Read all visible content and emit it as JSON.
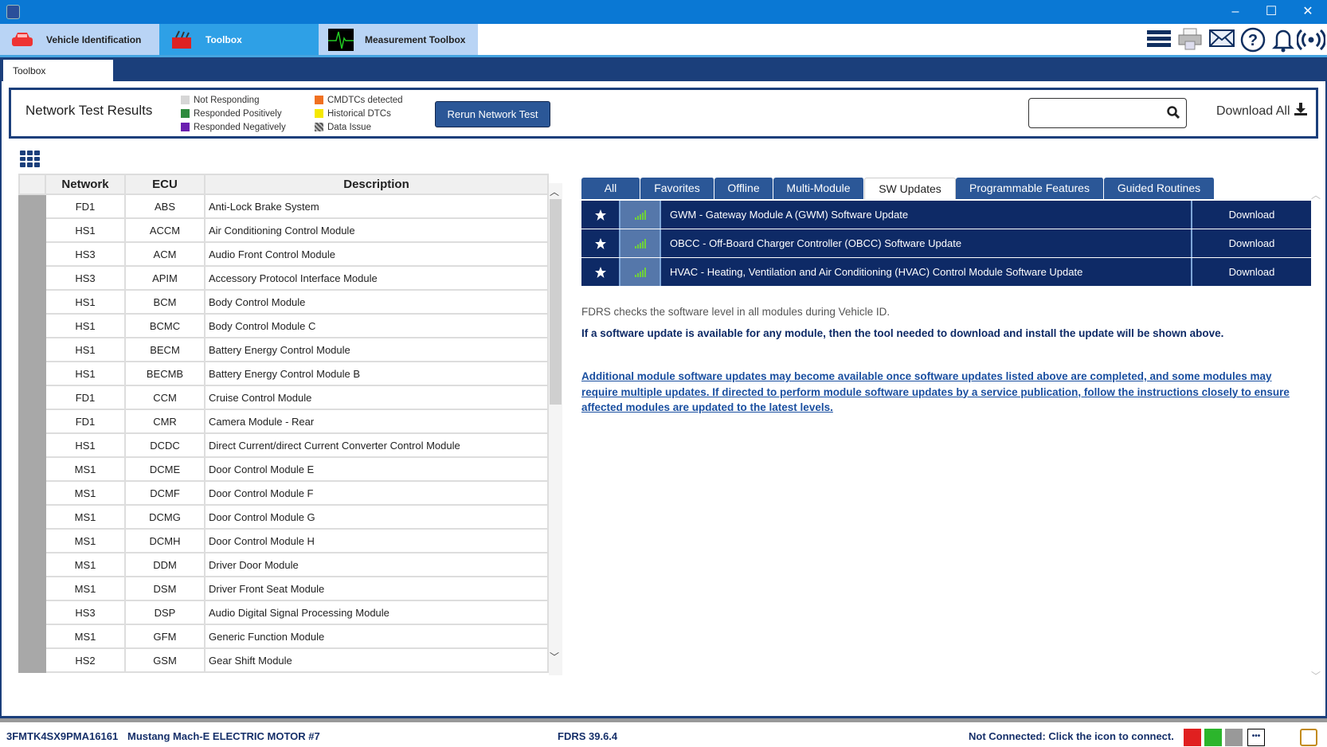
{
  "window": {
    "minimize": "–",
    "maximize": "☐",
    "close": "✕"
  },
  "main_tabs": [
    {
      "label": "Vehicle Identification",
      "icon": "car-icon"
    },
    {
      "label": "Toolbox",
      "icon": "toolbox-icon"
    },
    {
      "label": "Measurement Toolbox",
      "icon": "waveform-icon"
    }
  ],
  "toolbar_icons": [
    "menu-icon",
    "print-icon",
    "mail-icon",
    "help-icon",
    "bell-icon",
    "connection-icon"
  ],
  "sub_tab": "Toolbox",
  "network": {
    "title": "Network Test Results",
    "legend": [
      {
        "label": "Not Responding",
        "color": "#d6d6d6"
      },
      {
        "label": "Responded Positively",
        "color": "#2e8b3e"
      },
      {
        "label": "Responded Negatively",
        "color": "#6a1fb0"
      },
      {
        "label": "CMDTCs detected",
        "color": "#f07020"
      },
      {
        "label": "Historical DTCs",
        "color": "#f5e800"
      },
      {
        "label": "Data Issue",
        "color": "#777777"
      }
    ],
    "rerun": "Rerun Network Test",
    "search_placeholder": "",
    "download_all": "Download All"
  },
  "table": {
    "headers": [
      "Network",
      "ECU",
      "Description"
    ],
    "rows": [
      [
        "FD1",
        "ABS",
        "Anti-Lock Brake System"
      ],
      [
        "HS1",
        "ACCM",
        "Air Conditioning Control Module"
      ],
      [
        "HS3",
        "ACM",
        "Audio Front Control Module"
      ],
      [
        "HS3",
        "APIM",
        "Accessory Protocol Interface Module"
      ],
      [
        "HS1",
        "BCM",
        "Body Control Module"
      ],
      [
        "HS1",
        "BCMC",
        "Body Control Module C"
      ],
      [
        "HS1",
        "BECM",
        "Battery Energy Control Module"
      ],
      [
        "HS1",
        "BECMB",
        "Battery Energy Control Module B"
      ],
      [
        "FD1",
        "CCM",
        "Cruise Control Module"
      ],
      [
        "FD1",
        "CMR",
        "Camera Module - Rear"
      ],
      [
        "HS1",
        "DCDC",
        "Direct Current/direct Current Converter Control Module"
      ],
      [
        "MS1",
        "DCME",
        "Door Control Module E"
      ],
      [
        "MS1",
        "DCMF",
        "Door Control Module F"
      ],
      [
        "MS1",
        "DCMG",
        "Door Control Module G"
      ],
      [
        "MS1",
        "DCMH",
        "Door Control Module H"
      ],
      [
        "MS1",
        "DDM",
        "Driver Door Module"
      ],
      [
        "MS1",
        "DSM",
        "Driver Front Seat Module"
      ],
      [
        "HS3",
        "DSP",
        "Audio Digital Signal Processing Module"
      ],
      [
        "MS1",
        "GFM",
        "Generic Function Module"
      ],
      [
        "HS2",
        "GSM",
        "Gear Shift Module"
      ]
    ]
  },
  "right_tabs": [
    "All",
    "Favorites",
    "Offline",
    "Multi-Module",
    "SW Updates",
    "Programmable Features",
    "Guided Routines"
  ],
  "active_right_tab": "SW Updates",
  "updates": [
    {
      "title": "GWM - Gateway Module A (GWM) Software Update",
      "action": "Download"
    },
    {
      "title": "OBCC - Off-Board Charger Controller (OBCC) Software Update",
      "action": "Download"
    },
    {
      "title": "HVAC - Heating, Ventilation and Air Conditioning (HVAC) Control Module Software Update",
      "action": "Download"
    }
  ],
  "info": {
    "line1": "FDRS checks the software level in all modules during Vehicle ID.",
    "line2": "If a software update is available for any module, then the tool needed to download and install the update will be shown above.",
    "link": "Additional module software updates may become available once software updates listed above are completed, and some modules may require multiple updates. If directed to perform module software updates by a service publication, follow the instructions closely to ensure affected modules are updated to the latest levels."
  },
  "status": {
    "vin": "3FMTK4SX9PMA16161",
    "vehicle": "Mustang Mach-E ELECTRIC MOTOR #7",
    "version": "FDRS 39.6.4",
    "connection": "Not Connected: Click the icon to connect."
  }
}
